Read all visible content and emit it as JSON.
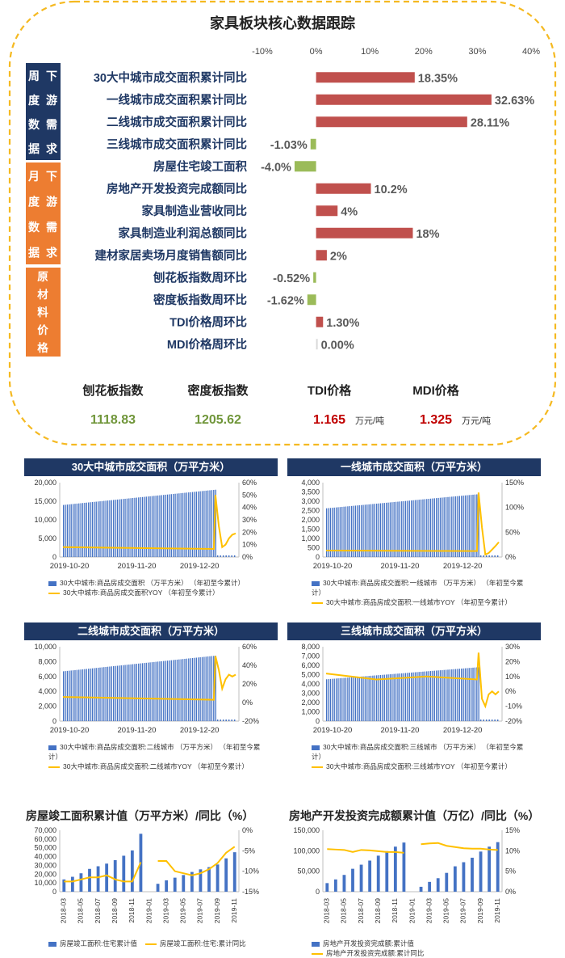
{
  "header": {
    "title": "家具板块核心数据跟踪"
  },
  "main_chart": {
    "type": "bar",
    "axis_ticks": [
      "-10%",
      "0%",
      "10%",
      "20%",
      "30%",
      "40%"
    ],
    "xlim": [
      -10,
      40
    ],
    "groups": [
      {
        "label_chars": [
          "周",
          "下",
          "度",
          "游",
          "数",
          "需",
          "据",
          "求"
        ],
        "label": "周度数据 下游需求",
        "color": "#1f3864"
      },
      {
        "label_chars": [
          "月",
          "下",
          "度",
          "游",
          "数",
          "需",
          "据",
          "求"
        ],
        "label": "月度数据 下游需求",
        "color": "#ed7d31"
      },
      {
        "label_chars": [
          "原",
          "材",
          "料",
          "价",
          "格"
        ],
        "label": "原材料价格",
        "color": "#ed7d31"
      }
    ],
    "categories": [
      "30大中城市成交面积累计同比",
      "一线城市成交面积累计同比",
      "二线城市成交面积累计同比",
      "三线城市成交面积累计同比",
      "房屋住宅竣工面积",
      "房地产开发投资完成额同比",
      "家具制造业营收同比",
      "家具制造业利润总额同比",
      "建材家居卖场月度销售额同比",
      "刨花板指数周环比",
      "密度板指数周环比",
      "TDI价格周环比",
      "MDI价格周环比"
    ],
    "values": [
      18.35,
      32.63,
      28.11,
      -1.03,
      -4.0,
      10.2,
      4,
      18,
      2,
      -0.52,
      -1.62,
      1.3,
      0.0
    ],
    "value_labels": [
      "18.35%",
      "32.63%",
      "28.11%",
      "-1.03%",
      "-4.0%",
      "10.2%",
      "4%",
      "18%",
      "2%",
      "-0.52%",
      "-1.62%",
      "1.30%",
      "0.00%"
    ],
    "colors": {
      "positive": "#c0504d",
      "negative": "#9bbb59",
      "zero": "#d9d9d9"
    }
  },
  "indices": [
    {
      "label": "刨花板指数",
      "value": "1118.83",
      "unit": "",
      "color": "#70963a"
    },
    {
      "label": "密度板指数",
      "value": "1205.62",
      "unit": "",
      "color": "#70963a"
    },
    {
      "label": "TDI价格",
      "value": "1.165",
      "unit": "万元/吨",
      "color": "#c00000"
    },
    {
      "label": "MDI价格",
      "value": "1.325",
      "unit": "万元/吨",
      "color": "#c00000"
    }
  ],
  "chart_data": [
    {
      "type": "bar",
      "title": "30大中城市成交面积（万平方米）",
      "x_ticks": [
        "2019-10-20",
        "2019-11-20",
        "2019-12-20"
      ],
      "y_left_ticks": [
        "0",
        "5,000",
        "10,000",
        "15,000",
        "20,000"
      ],
      "ylim_left": [
        0,
        20000
      ],
      "y_right_ticks": [
        "0%",
        "10%",
        "20%",
        "30%",
        "40%",
        "50%",
        "60%"
      ],
      "ylim_right": [
        0,
        60
      ],
      "bar_start": 14000,
      "bar_end": 18100,
      "bar_count": 80,
      "line_pre": [
        8.0,
        6.5
      ],
      "line_tail": [
        50,
        25,
        8,
        10,
        15,
        18,
        19
      ],
      "series": [
        {
          "name": "30大中城市:商品房成交面积 （万平方米） （年初至今累计）"
        },
        {
          "name": "30大中城市:商品房成交面积YOY （年初至今累计）"
        }
      ]
    },
    {
      "type": "bar",
      "title": "一线城市成交面积（万平方米）",
      "x_ticks": [
        "2019-10-20",
        "2019-11-20",
        "2019-12-20"
      ],
      "y_left_ticks": [
        "0",
        "500",
        "1,000",
        "1,500",
        "2,000",
        "2,500",
        "3,000",
        "3,500",
        "4,000"
      ],
      "ylim_left": [
        0,
        4000
      ],
      "y_right_ticks": [
        "0%",
        "50%",
        "100%",
        "150%"
      ],
      "ylim_right": [
        0,
        150
      ],
      "bar_start": 2620,
      "bar_end": 3380,
      "bar_count": 80,
      "line_pre": [
        13,
        12
      ],
      "line_tail": [
        130,
        60,
        5,
        8,
        15,
        22,
        30
      ],
      "series": [
        {
          "name": "30大中城市:商品房成交面积:一线城市 （万平方米） （年初至今累计）"
        },
        {
          "name": "30大中城市:商品房成交面积:一线城市YOY （年初至今累计）"
        }
      ]
    },
    {
      "type": "bar",
      "title": "二线城市成交面积（万平方米）",
      "x_ticks": [
        "2019-10-20",
        "2019-11-20",
        "2019-12-20"
      ],
      "y_left_ticks": [
        "0",
        "2,000",
        "4,000",
        "6,000",
        "8,000",
        "10,000"
      ],
      "ylim_left": [
        0,
        10000
      ],
      "y_right_ticks": [
        "-20%",
        "0%",
        "20%",
        "40%",
        "60%"
      ],
      "ylim_right": [
        -20,
        60
      ],
      "bar_start": 6700,
      "bar_end": 8800,
      "bar_count": 80,
      "line_pre": [
        6,
        3
      ],
      "line_tail": [
        50,
        35,
        15,
        25,
        30,
        28,
        30
      ],
      "series": [
        {
          "name": "30大中城市:商品房成交面积:二线城市 （万平方米） （年初至今累计）"
        },
        {
          "name": "30大中城市:商品房成交面积:二线城市YOY （年初至今累计）"
        }
      ]
    },
    {
      "type": "bar",
      "title": "三线城市成交面积（万平方米）",
      "x_ticks": [
        "2019-10-20",
        "2019-11-20",
        "2019-12-20"
      ],
      "y_left_ticks": [
        "0",
        "1,000",
        "2,000",
        "3,000",
        "4,000",
        "5,000",
        "6,000",
        "7,000",
        "8,000"
      ],
      "ylim_left": [
        0,
        8000
      ],
      "y_right_ticks": [
        "-20%",
        "-10%",
        "0%",
        "10%",
        "20%",
        "30%"
      ],
      "ylim_right": [
        -20,
        30
      ],
      "bar_start": 4500,
      "bar_end": 5800,
      "bar_count": 80,
      "line_pre": [
        12,
        8,
        10,
        8
      ],
      "line_tail": [
        26,
        -5,
        -10,
        -2,
        0,
        -2,
        0
      ],
      "series": [
        {
          "name": "30大中城市:商品房成交面积:三线城市 （万平方米） （年初至今累计）"
        },
        {
          "name": "30大中城市:商品房成交面积:三线城市YOY （年初至今累计）"
        }
      ]
    },
    {
      "type": "bar",
      "title": "房屋竣工面积累计值（万平方米）/同比（%）",
      "categories": [
        "2018-03",
        "2018-04",
        "2018-05",
        "2018-06",
        "2018-07",
        "2018-08",
        "2018-09",
        "2018-10",
        "2018-11",
        "2018-12",
        "2019-01",
        "2019-02",
        "2019-03",
        "2019-04",
        "2019-05",
        "2019-06",
        "2019-07",
        "2019-08",
        "2019-09",
        "2019-10",
        "2019-11"
      ],
      "x_ticks": [
        "2018-03",
        "2018-05",
        "2018-07",
        "2018-09",
        "2018-11",
        "2019-01",
        "2019-03",
        "2019-05",
        "2019-07",
        "2019-09",
        "2019-11"
      ],
      "values": [
        14000,
        17000,
        21000,
        26000,
        29000,
        32000,
        36000,
        41000,
        47000,
        66000,
        null,
        9000,
        13000,
        16000,
        19000,
        22500,
        25500,
        28000,
        31000,
        38000,
        45000
      ],
      "line": [
        -12.5,
        -12.5,
        -12.0,
        -11.5,
        -11.5,
        -11.0,
        -12.0,
        -12.5,
        -12.5,
        -7.8,
        null,
        -7.5,
        -7.5,
        -10.0,
        -10.5,
        -11.0,
        -10.5,
        -9.5,
        -8.0,
        -5.5,
        -4.0
      ],
      "y_left_ticks": [
        "0",
        "10,000",
        "20,000",
        "30,000",
        "40,000",
        "50,000",
        "60,000",
        "70,000"
      ],
      "ylim_left": [
        0,
        70000
      ],
      "y_right_ticks": [
        "-15%",
        "-10%",
        "-5%",
        "0%"
      ],
      "ylim_right": [
        -15,
        0
      ],
      "series": [
        {
          "name": "房屋竣工面积:住宅累计值"
        },
        {
          "name": "房屋竣工面积:住宅:累计同比"
        }
      ]
    },
    {
      "type": "bar",
      "title": "房地产开发投资完成额累计值（万亿）/同比（%）",
      "categories": [
        "2018-03",
        "2018-04",
        "2018-05",
        "2018-06",
        "2018-07",
        "2018-08",
        "2018-09",
        "2018-10",
        "2018-11",
        "2018-12",
        "2019-01",
        "2019-02",
        "2019-03",
        "2019-04",
        "2019-05",
        "2019-06",
        "2019-07",
        "2019-08",
        "2019-09",
        "2019-10",
        "2019-11"
      ],
      "x_ticks": [
        "2018-03",
        "2018-05",
        "2018-07",
        "2018-09",
        "2018-11",
        "2019-01",
        "2019-03",
        "2019-05",
        "2019-07",
        "2019-09",
        "2019-11"
      ],
      "values": [
        21000,
        30000,
        41000,
        56000,
        66000,
        76000,
        88000,
        99000,
        110000,
        120000,
        null,
        12000,
        24000,
        33000,
        46000,
        62000,
        72000,
        83000,
        98000,
        110000,
        121000
      ],
      "line": [
        10.4,
        10.3,
        10.2,
        9.7,
        10.2,
        10.1,
        9.9,
        9.7,
        9.7,
        9.5,
        null,
        11.6,
        11.8,
        11.9,
        11.2,
        10.9,
        10.6,
        10.5,
        10.5,
        10.3,
        10.2
      ],
      "y_left_ticks": [
        "0",
        "50,000",
        "100,000",
        "150,000"
      ],
      "ylim_left": [
        0,
        150000
      ],
      "y_right_ticks": [
        "0%",
        "5%",
        "10%",
        "15%"
      ],
      "ylim_right": [
        0,
        15
      ],
      "series": [
        {
          "name": "房地产开发投资完成额:累计值"
        },
        {
          "name": "房地产开发投资完成额:累计同比"
        }
      ]
    }
  ]
}
